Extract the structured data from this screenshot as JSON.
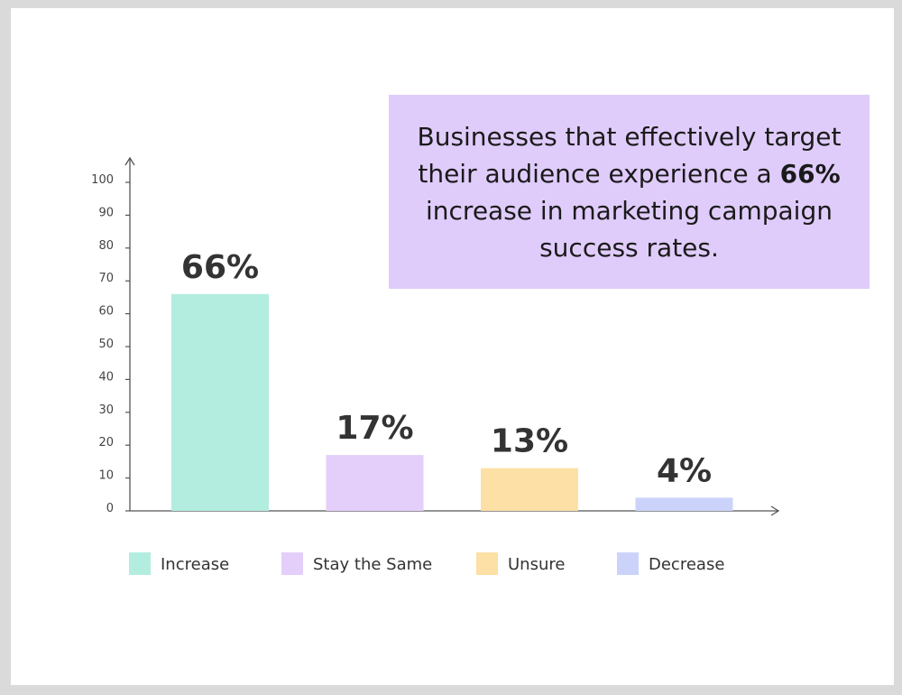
{
  "callout": {
    "text_before": "Businesses that effectively target their audience experience a ",
    "highlight": "66%",
    "text_after": " increase in marketing campaign success rates.",
    "background": "#e0ccfb"
  },
  "chart_data": {
    "type": "bar",
    "title": "",
    "xlabel": "",
    "ylabel": "",
    "categories": [
      "Increase",
      "Stay the Same",
      "Unsure",
      "Decrease"
    ],
    "values": [
      66,
      17,
      13,
      4
    ],
    "data_labels": [
      "66%",
      "17%",
      "13%",
      "4%"
    ],
    "colors": [
      "#b3ede0",
      "#e3cff9",
      "#fde0a6",
      "#ccd3fb"
    ],
    "ylim": [
      0,
      100
    ],
    "yticks": [
      0,
      10,
      20,
      30,
      40,
      50,
      60,
      70,
      80,
      90,
      100
    ],
    "grid": false,
    "legend_position": "bottom"
  }
}
